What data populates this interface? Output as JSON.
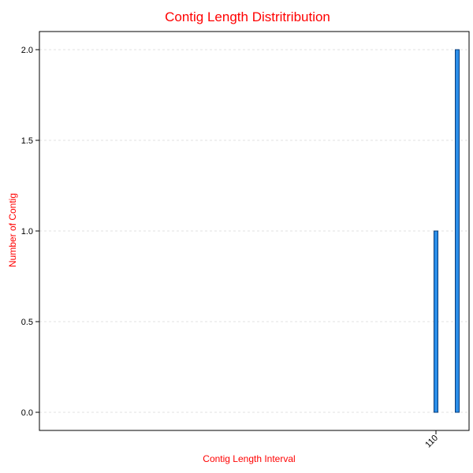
{
  "chart_data": {
    "type": "bar",
    "title": "Contig Length Distritribution",
    "xlabel": "Contig Length Interval",
    "ylabel": "Number of Contig",
    "categories": [
      "110",
      ""
    ],
    "values": [
      1,
      2
    ],
    "yticks": [
      "0.0",
      "0.5",
      "1.0",
      "1.5",
      "2.0"
    ],
    "ylim": [
      -0.1,
      2.1
    ],
    "grid": true,
    "bar_color": "#2b8ee8"
  }
}
